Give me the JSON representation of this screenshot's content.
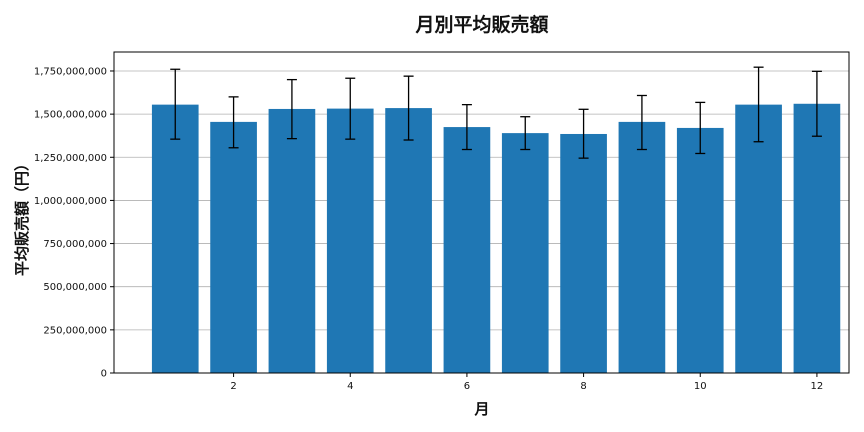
{
  "chart_data": {
    "type": "bar",
    "title": "月別平均販売額",
    "xlabel": "月",
    "ylabel": "平均販売額（円）",
    "months": [
      1,
      2,
      3,
      4,
      5,
      6,
      7,
      8,
      9,
      10,
      11,
      12
    ],
    "values": [
      1555000000,
      1455000000,
      1530000000,
      1532000000,
      1535000000,
      1425000000,
      1390000000,
      1385000000,
      1455000000,
      1420000000,
      1555000000,
      1560000000
    ],
    "errors_low": [
      1355000000,
      1305000000,
      1358000000,
      1355000000,
      1350000000,
      1295000000,
      1295000000,
      1245000000,
      1295000000,
      1272000000,
      1340000000,
      1372000000
    ],
    "errors_high": [
      1760000000,
      1600000000,
      1700000000,
      1708000000,
      1720000000,
      1555000000,
      1485000000,
      1528000000,
      1608000000,
      1568000000,
      1772000000,
      1748000000
    ],
    "x_ticks": [
      "2",
      "4",
      "6",
      "8",
      "10",
      "12"
    ],
    "y_ticks": [
      "0",
      "250,000,000",
      "500,000,000",
      "750,000,000",
      "1,000,000,000",
      "1,250,000,000",
      "1,500,000,000",
      "1,750,000,000"
    ],
    "ylim": [
      0,
      1860000000
    ],
    "xlim": [
      -0.05,
      12.55
    ],
    "bar_color": "#1f77b4",
    "grid": "horizontal"
  }
}
